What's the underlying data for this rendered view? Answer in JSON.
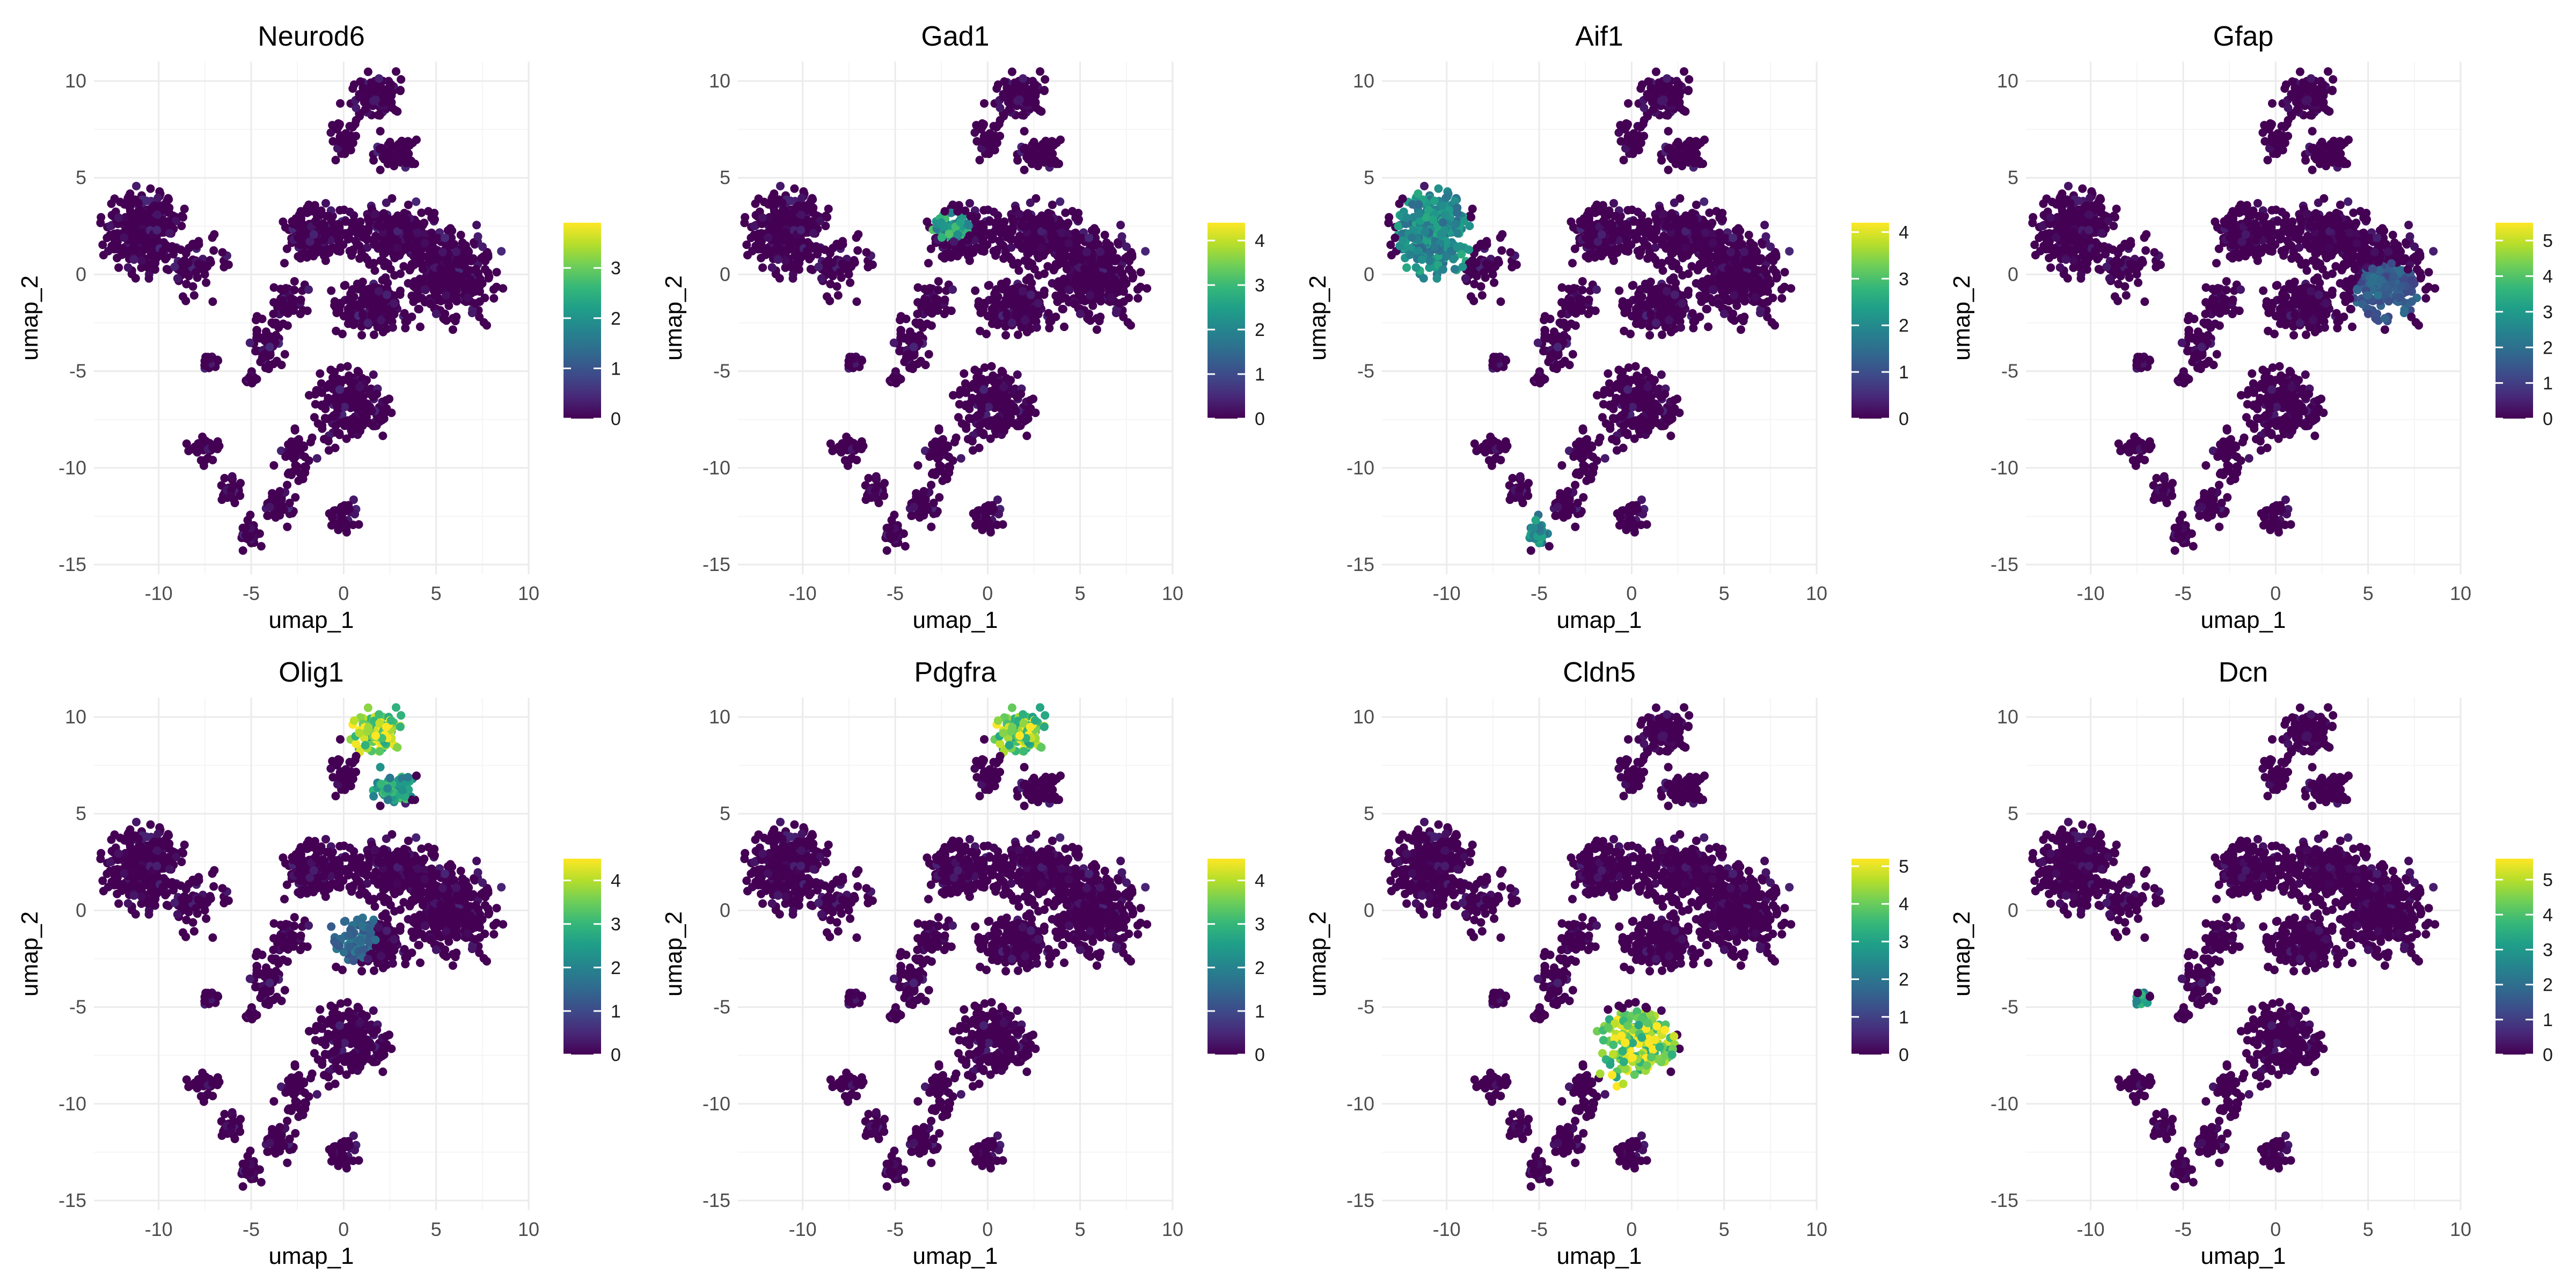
{
  "figure": {
    "background": "#ffffff"
  },
  "colors": {
    "grid_major": "#ebebeb",
    "grid_minor": "#f5f5f5",
    "base_point": "#440154",
    "viridis": [
      "#440154",
      "#482878",
      "#3e4a89",
      "#31688e",
      "#26828e",
      "#1f9e89",
      "#35b779",
      "#6ece58",
      "#b5de2b",
      "#fde725"
    ]
  },
  "chart_data": [
    {
      "type": "scatter",
      "title": "Neurod6",
      "xlabel": "umap_1",
      "ylabel": "umap_2",
      "xlim": [
        -13.5,
        10
      ],
      "ylim": [
        -15.5,
        11
      ],
      "x_ticks": [
        -10,
        -5,
        0,
        5,
        10
      ],
      "y_ticks": [
        -15,
        -10,
        -5,
        0,
        5,
        10
      ],
      "x_tick_labels": [
        "-10",
        "-5",
        "0",
        "5",
        "10"
      ],
      "y_tick_labels": [
        "-15",
        "-10",
        "-5",
        "0",
        "5",
        "10"
      ],
      "grid": true,
      "legend": {
        "position": "right",
        "max": 3.9,
        "ticks": [
          0,
          1,
          2,
          3
        ],
        "tick_labels": [
          "0",
          "1",
          "2",
          "3"
        ]
      },
      "high_expression_clusters": []
    },
    {
      "type": "scatter",
      "title": "Gad1",
      "xlabel": "umap_1",
      "ylabel": "umap_2",
      "xlim": [
        -13.5,
        10
      ],
      "ylim": [
        -15.5,
        11
      ],
      "x_ticks": [
        -10,
        -5,
        0,
        5,
        10
      ],
      "y_ticks": [
        -15,
        -10,
        -5,
        0,
        5,
        10
      ],
      "x_tick_labels": [
        "-10",
        "-5",
        "0",
        "5",
        "10"
      ],
      "y_tick_labels": [
        "-15",
        "-10",
        "-5",
        "0",
        "5",
        "10"
      ],
      "grid": true,
      "legend": {
        "position": "right",
        "max": 4.4,
        "ticks": [
          0,
          1,
          2,
          3,
          4
        ],
        "tick_labels": [
          "0",
          "1",
          "2",
          "3",
          "4"
        ]
      },
      "high_expression_clusters": [
        {
          "x": -2,
          "y": 2.5,
          "rx": 0.9,
          "ry": 0.7,
          "value": 2.5
        }
      ]
    },
    {
      "type": "scatter",
      "title": "Aif1",
      "xlabel": "umap_1",
      "ylabel": "umap_2",
      "xlim": [
        -13.5,
        10
      ],
      "ylim": [
        -15.5,
        11
      ],
      "x_ticks": [
        -10,
        -5,
        0,
        5,
        10
      ],
      "y_ticks": [
        -15,
        -10,
        -5,
        0,
        5,
        10
      ],
      "x_tick_labels": [
        "-10",
        "-5",
        "0",
        "5",
        "10"
      ],
      "y_tick_labels": [
        "-15",
        "-10",
        "-5",
        "0",
        "5",
        "10"
      ],
      "grid": true,
      "legend": {
        "position": "right",
        "max": 4.2,
        "ticks": [
          0,
          1,
          2,
          3,
          4
        ],
        "tick_labels": [
          "0",
          "1",
          "2",
          "3",
          "4"
        ]
      },
      "high_expression_clusters": [
        {
          "x": -10.7,
          "y": 2,
          "rx": 1.8,
          "ry": 2.3,
          "value": 2.0
        },
        {
          "x": -5.2,
          "y": -13.2,
          "rx": 0.6,
          "ry": 0.9,
          "value": 2.0
        }
      ]
    },
    {
      "type": "scatter",
      "title": "Gfap",
      "xlabel": "umap_1",
      "ylabel": "umap_2",
      "xlim": [
        -13.5,
        10
      ],
      "ylim": [
        -15.5,
        11
      ],
      "x_ticks": [
        -10,
        -5,
        0,
        5,
        10
      ],
      "y_ticks": [
        -15,
        -10,
        -5,
        0,
        5,
        10
      ],
      "x_tick_labels": [
        "-10",
        "-5",
        "0",
        "5",
        "10"
      ],
      "y_tick_labels": [
        "-15",
        "-10",
        "-5",
        "0",
        "5",
        "10"
      ],
      "grid": true,
      "legend": {
        "position": "right",
        "max": 5.5,
        "ticks": [
          0,
          1,
          2,
          3,
          4,
          5
        ],
        "tick_labels": [
          "0",
          "1",
          "2",
          "3",
          "4",
          "5"
        ]
      },
      "high_expression_clusters": [
        {
          "x": 6,
          "y": -1,
          "rx": 1.6,
          "ry": 1.4,
          "value": 1.6
        }
      ]
    },
    {
      "type": "scatter",
      "title": "Olig1",
      "xlabel": "umap_1",
      "ylabel": "umap_2",
      "xlim": [
        -13.5,
        10
      ],
      "ylim": [
        -15.5,
        11
      ],
      "x_ticks": [
        -10,
        -5,
        0,
        5,
        10
      ],
      "y_ticks": [
        -15,
        -10,
        -5,
        0,
        5,
        10
      ],
      "x_tick_labels": [
        "-10",
        "-5",
        "0",
        "5",
        "10"
      ],
      "y_tick_labels": [
        "-15",
        "-10",
        "-5",
        "0",
        "5",
        "10"
      ],
      "grid": true,
      "legend": {
        "position": "right",
        "max": 4.5,
        "ticks": [
          0,
          1,
          2,
          3,
          4
        ],
        "tick_labels": [
          "0",
          "1",
          "2",
          "3",
          "4"
        ]
      },
      "high_expression_clusters": [
        {
          "x": 1.7,
          "y": 9.5,
          "rx": 1.6,
          "ry": 1.5,
          "value": 3.8
        },
        {
          "x": 2.5,
          "y": 6.5,
          "rx": 1.3,
          "ry": 0.9,
          "value": 2.5
        },
        {
          "x": 0.2,
          "y": -1,
          "rx": 1.4,
          "ry": 1.6,
          "value": 1.5
        }
      ]
    },
    {
      "type": "scatter",
      "title": "Pdgfra",
      "xlabel": "umap_1",
      "ylabel": "umap_2",
      "xlim": [
        -13.5,
        10
      ],
      "ylim": [
        -15.5,
        11
      ],
      "x_ticks": [
        -10,
        -5,
        0,
        5,
        10
      ],
      "y_ticks": [
        -15,
        -10,
        -5,
        0,
        5,
        10
      ],
      "x_tick_labels": [
        "-10",
        "-5",
        "0",
        "5",
        "10"
      ],
      "y_tick_labels": [
        "-15",
        "-10",
        "-5",
        "0",
        "5",
        "10"
      ],
      "grid": true,
      "legend": {
        "position": "right",
        "max": 4.5,
        "ticks": [
          0,
          1,
          2,
          3,
          4
        ],
        "tick_labels": [
          "0",
          "1",
          "2",
          "3",
          "4"
        ]
      },
      "high_expression_clusters": [
        {
          "x": 1.7,
          "y": 9.5,
          "rx": 1.6,
          "ry": 1.5,
          "value": 3.5
        }
      ]
    },
    {
      "type": "scatter",
      "title": "Cldn5",
      "xlabel": "umap_1",
      "ylabel": "umap_2",
      "xlim": [
        -13.5,
        10
      ],
      "ylim": [
        -15.5,
        11
      ],
      "x_ticks": [
        -10,
        -5,
        0,
        5,
        10
      ],
      "y_ticks": [
        -15,
        -10,
        -5,
        0,
        5,
        10
      ],
      "x_tick_labels": [
        "-10",
        "-5",
        "0",
        "5",
        "10"
      ],
      "y_tick_labels": [
        "-15",
        "-10",
        "-5",
        "0",
        "5",
        "10"
      ],
      "grid": true,
      "legend": {
        "position": "right",
        "max": 5.2,
        "ticks": [
          0,
          1,
          2,
          3,
          4,
          5
        ],
        "tick_labels": [
          "0",
          "1",
          "2",
          "3",
          "4",
          "5"
        ]
      },
      "high_expression_clusters": [
        {
          "x": 0,
          "y": -7.2,
          "rx": 2.2,
          "ry": 1.8,
          "value": 4.3
        }
      ]
    },
    {
      "type": "scatter",
      "title": "Dcn",
      "xlabel": "umap_1",
      "ylabel": "umap_2",
      "xlim": [
        -13.5,
        10
      ],
      "ylim": [
        -15.5,
        11
      ],
      "x_ticks": [
        -10,
        -5,
        0,
        5,
        10
      ],
      "y_ticks": [
        -15,
        -10,
        -5,
        0,
        5,
        10
      ],
      "x_tick_labels": [
        "-10",
        "-5",
        "0",
        "5",
        "10"
      ],
      "y_tick_labels": [
        "-15",
        "-10",
        "-5",
        "0",
        "5",
        "10"
      ],
      "grid": true,
      "legend": {
        "position": "right",
        "max": 5.6,
        "ticks": [
          0,
          1,
          2,
          3,
          4,
          5
        ],
        "tick_labels": [
          "0",
          "1",
          "2",
          "3",
          "4",
          "5"
        ]
      },
      "high_expression_clusters": [
        {
          "x": -7.2,
          "y": -4.8,
          "rx": 0.4,
          "ry": 0.5,
          "value": 3.0
        }
      ]
    }
  ]
}
